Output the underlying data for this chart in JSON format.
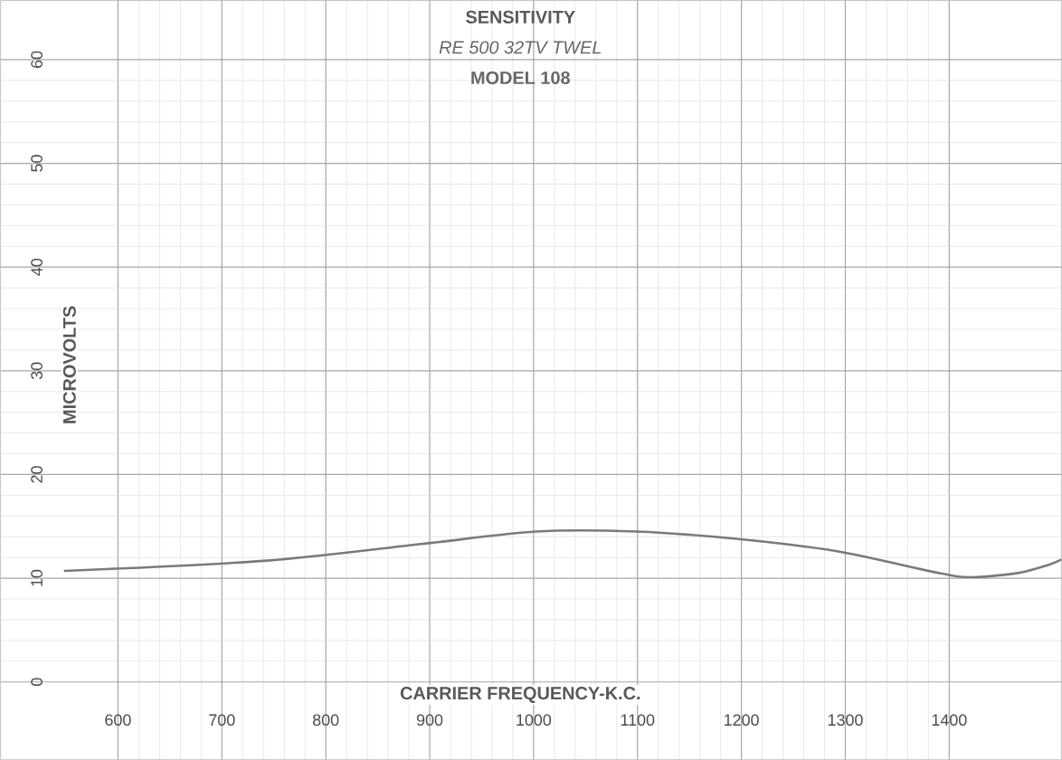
{
  "chart_data": {
    "type": "line",
    "title": "SENSITIVITY",
    "subtitle": "RE 500 32TV TWEL",
    "annotations": [
      "MODEL 108"
    ],
    "xlabel": "CARRIER FREQUENCY-K.C.",
    "ylabel": "MICROVOLTS",
    "x": [
      548,
      744,
      892,
      1002,
      1099,
      1195,
      1292,
      1390,
      1421,
      1466,
      1496,
      1508
    ],
    "series": [
      {
        "color": "#7a7a7a",
        "values": [
          10.7,
          11.7,
          13.3,
          14.5,
          14.5,
          13.8,
          12.6,
          10.5,
          10.1,
          10.5,
          11.3,
          11.8
        ]
      }
    ],
    "xlim": [
      487,
      1508
    ],
    "ylim": [
      -7.5,
      65.7
    ],
    "xticks": [
      600,
      700,
      800,
      900,
      1000,
      1100,
      1200,
      1300,
      1400
    ],
    "yticks": [
      0,
      10,
      20,
      30,
      40,
      50,
      60
    ],
    "grid": true,
    "marker": "none",
    "line_style": "solid"
  }
}
